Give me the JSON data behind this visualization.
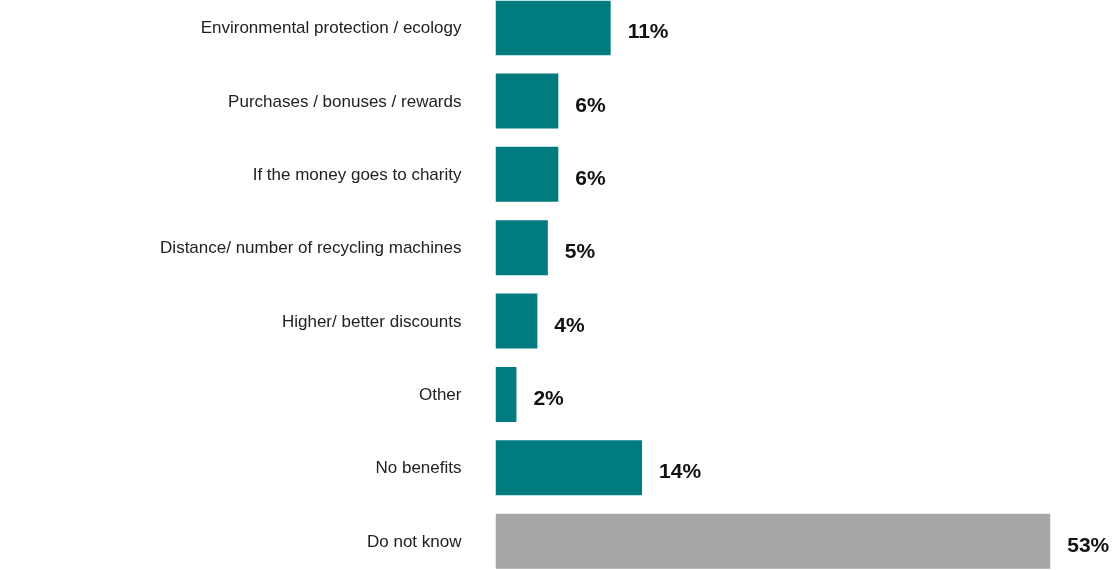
{
  "chart_data": {
    "type": "bar",
    "orientation": "horizontal",
    "categories": [
      "Environmental protection / ecology",
      "Purchases / bonuses / rewards",
      "If the money goes to charity",
      "Distance/ number of recycling machines",
      "Higher/ better discounts",
      "Other",
      "No benefits",
      "Do not know"
    ],
    "values": [
      11,
      6,
      6,
      5,
      4,
      2,
      14,
      53
    ],
    "colors": [
      "#007b7f",
      "#007b7f",
      "#007b7f",
      "#007b7f",
      "#007b7f",
      "#007b7f",
      "#007b7f",
      "#a6a6a6"
    ],
    "value_labels": [
      "11%",
      "6%",
      "6%",
      "5%",
      "4%",
      "2%",
      "14%",
      "53%"
    ],
    "grid": false
  }
}
